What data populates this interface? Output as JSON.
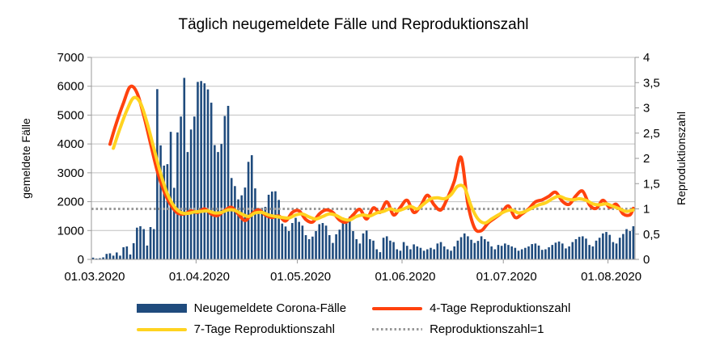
{
  "chart": {
    "title": "Täglich neugemeldete Fälle und Reproduktionszahl",
    "left_axis": {
      "title": "gemeldete Fälle",
      "min": 0,
      "max": 7000,
      "step": 1000,
      "tick_labels": [
        "7000",
        "6000",
        "5000",
        "4000",
        "3000",
        "2000",
        "1000",
        "0"
      ]
    },
    "right_axis": {
      "title": "Reproduktionszahl",
      "min": 0,
      "max": 4,
      "step": 0.5,
      "tick_labels": [
        "4",
        "3,5",
        "3",
        "2,5",
        "2",
        "1,5",
        "1",
        "0,5",
        "0"
      ]
    },
    "x_axis": {
      "tick_labels": [
        "01.03.2020",
        "01.04.2020",
        "01.05.2020",
        "01.06.2020",
        "01.07.2020",
        "01.08.2020"
      ],
      "tick_day_indices": [
        0,
        31,
        61,
        92,
        122,
        153
      ],
      "total_days": 161
    },
    "colors": {
      "bars": "#1f4b7d",
      "line_4day": "#ff420e",
      "line_7day": "#ffd320",
      "reference": "#999999",
      "gridline": "#c0c0c0",
      "axis": "#9a9a9a"
    }
  },
  "chart_data": {
    "type": "bar",
    "subtype": "combo-bar-line",
    "start_date": "01.03.2020",
    "end_date": "08.08.2020",
    "bars": {
      "name": "Neugemeldete Corona-Fälle",
      "color": "#1f4b7d",
      "axis": "left",
      "values": [
        60,
        30,
        40,
        70,
        190,
        210,
        130,
        240,
        130,
        420,
        450,
        170,
        560,
        1100,
        1150,
        1050,
        480,
        1120,
        1050,
        5900,
        3950,
        3250,
        3300,
        4420,
        2480,
        4400,
        4950,
        6290,
        3720,
        4500,
        4950,
        6150,
        6180,
        6100,
        5890,
        5430,
        3960,
        3720,
        4000,
        4970,
        5320,
        2820,
        2540,
        2080,
        2220,
        2490,
        3380,
        3610,
        2460,
        1780,
        1790,
        1820,
        2240,
        2350,
        2360,
        2060,
        1240,
        1140,
        980,
        1260,
        1440,
        1300,
        1170,
        840,
        700,
        790,
        980,
        1220,
        1260,
        1170,
        840,
        570,
        870,
        1030,
        1450,
        1350,
        1480,
        980,
        700,
        550,
        900,
        1000,
        700,
        650,
        350,
        250,
        750,
        800,
        650,
        600,
        350,
        300,
        600,
        470,
        350,
        520,
        450,
        400,
        300,
        350,
        400,
        350,
        550,
        600,
        450,
        350,
        300,
        450,
        650,
        770,
        900,
        800,
        680,
        570,
        640,
        800,
        700,
        620,
        450,
        350,
        500,
        470,
        550,
        500,
        450,
        400,
        300,
        350,
        400,
        450,
        530,
        550,
        480,
        330,
        350,
        420,
        500,
        580,
        620,
        550,
        380,
        450,
        600,
        700,
        780,
        800,
        720,
        500,
        450,
        650,
        750,
        900,
        950,
        850,
        600,
        550,
        750,
        880,
        1050,
        980,
        1150
      ]
    },
    "lines": [
      {
        "name": "4-Tage Reproduktionszahl",
        "color": "#ff420e",
        "axis": "right",
        "width": 4,
        "points": [
          [
            5,
            2.28
          ],
          [
            7,
            2.72
          ],
          [
            9,
            3.1
          ],
          [
            11,
            3.42
          ],
          [
            13,
            3.3
          ],
          [
            15,
            2.85
          ],
          [
            17,
            2.3
          ],
          [
            19,
            1.75
          ],
          [
            21,
            1.35
          ],
          [
            23,
            1.08
          ],
          [
            25,
            0.92
          ],
          [
            27,
            0.9
          ],
          [
            29,
            0.96
          ],
          [
            31,
            0.93
          ],
          [
            33,
            1.0
          ],
          [
            35,
            0.9
          ],
          [
            37,
            0.87
          ],
          [
            39,
            0.97
          ],
          [
            41,
            1.03
          ],
          [
            43,
            0.9
          ],
          [
            45,
            0.77
          ],
          [
            47,
            0.9
          ],
          [
            49,
            0.98
          ],
          [
            51,
            0.88
          ],
          [
            53,
            0.83
          ],
          [
            55,
            0.86
          ],
          [
            57,
            0.76
          ],
          [
            59,
            0.93
          ],
          [
            61,
            0.96
          ],
          [
            63,
            0.79
          ],
          [
            65,
            0.74
          ],
          [
            67,
            0.9
          ],
          [
            69,
            0.98
          ],
          [
            71,
            0.93
          ],
          [
            73,
            0.78
          ],
          [
            75,
            0.74
          ],
          [
            77,
            0.88
          ],
          [
            79,
            0.99
          ],
          [
            81,
            0.8
          ],
          [
            83,
            1.02
          ],
          [
            85,
            0.93
          ],
          [
            87,
            1.14
          ],
          [
            89,
            0.88
          ],
          [
            91,
            1.03
          ],
          [
            93,
            1.17
          ],
          [
            95,
            0.93
          ],
          [
            97,
            1.06
          ],
          [
            99,
            1.27
          ],
          [
            101,
            1.08
          ],
          [
            103,
            0.98
          ],
          [
            105,
            1.22
          ],
          [
            107,
            1.55
          ],
          [
            109,
            2.02
          ],
          [
            111,
            1.1
          ],
          [
            113,
            0.62
          ],
          [
            115,
            0.57
          ],
          [
            117,
            0.72
          ],
          [
            119,
            0.82
          ],
          [
            121,
            0.92
          ],
          [
            123,
            1.06
          ],
          [
            125,
            0.83
          ],
          [
            127,
            0.9
          ],
          [
            129,
            1.0
          ],
          [
            131,
            1.14
          ],
          [
            133,
            1.18
          ],
          [
            135,
            1.25
          ],
          [
            137,
            1.33
          ],
          [
            139,
            1.15
          ],
          [
            141,
            1.09
          ],
          [
            143,
            1.26
          ],
          [
            145,
            1.35
          ],
          [
            147,
            1.08
          ],
          [
            149,
            1.01
          ],
          [
            151,
            1.17
          ],
          [
            153,
            1.03
          ],
          [
            155,
            1.09
          ],
          [
            157,
            0.9
          ],
          [
            159,
            0.88
          ],
          [
            160,
            1.01
          ]
        ]
      },
      {
        "name": "7-Tage Reproduktionszahl",
        "color": "#ffd320",
        "axis": "right",
        "width": 4,
        "points": [
          [
            6,
            2.2
          ],
          [
            8,
            2.6
          ],
          [
            10,
            2.95
          ],
          [
            12,
            3.2
          ],
          [
            14,
            3.1
          ],
          [
            16,
            2.7
          ],
          [
            18,
            2.2
          ],
          [
            20,
            1.7
          ],
          [
            22,
            1.3
          ],
          [
            24,
            1.05
          ],
          [
            26,
            0.93
          ],
          [
            28,
            0.91
          ],
          [
            30,
            0.94
          ],
          [
            32,
            0.95
          ],
          [
            34,
            0.96
          ],
          [
            36,
            0.92
          ],
          [
            38,
            0.93
          ],
          [
            40,
            0.98
          ],
          [
            42,
            0.97
          ],
          [
            44,
            0.9
          ],
          [
            46,
            0.85
          ],
          [
            48,
            0.92
          ],
          [
            50,
            0.93
          ],
          [
            52,
            0.88
          ],
          [
            54,
            0.85
          ],
          [
            56,
            0.83
          ],
          [
            58,
            0.82
          ],
          [
            60,
            0.88
          ],
          [
            62,
            0.9
          ],
          [
            64,
            0.84
          ],
          [
            66,
            0.8
          ],
          [
            68,
            0.85
          ],
          [
            70,
            0.9
          ],
          [
            72,
            0.87
          ],
          [
            74,
            0.8
          ],
          [
            76,
            0.78
          ],
          [
            78,
            0.85
          ],
          [
            80,
            0.88
          ],
          [
            82,
            0.86
          ],
          [
            84,
            0.92
          ],
          [
            86,
            0.95
          ],
          [
            88,
            1.0
          ],
          [
            90,
            0.96
          ],
          [
            92,
            1.0
          ],
          [
            94,
            1.05
          ],
          [
            96,
            1.0
          ],
          [
            98,
            1.1
          ],
          [
            100,
            1.2
          ],
          [
            102,
            1.22
          ],
          [
            104,
            1.2
          ],
          [
            106,
            1.28
          ],
          [
            108,
            1.45
          ],
          [
            110,
            1.42
          ],
          [
            112,
            1.05
          ],
          [
            114,
            0.8
          ],
          [
            116,
            0.72
          ],
          [
            118,
            0.8
          ],
          [
            120,
            0.88
          ],
          [
            122,
            0.95
          ],
          [
            124,
            0.98
          ],
          [
            126,
            0.92
          ],
          [
            128,
            0.95
          ],
          [
            130,
            1.02
          ],
          [
            132,
            1.08
          ],
          [
            134,
            1.12
          ],
          [
            136,
            1.2
          ],
          [
            138,
            1.25
          ],
          [
            140,
            1.2
          ],
          [
            142,
            1.18
          ],
          [
            144,
            1.2
          ],
          [
            146,
            1.17
          ],
          [
            148,
            1.1
          ],
          [
            150,
            1.08
          ],
          [
            152,
            1.1
          ],
          [
            154,
            1.05
          ],
          [
            156,
            1.0
          ],
          [
            158,
            0.95
          ],
          [
            160,
            0.98
          ]
        ]
      }
    ],
    "reference_line": {
      "name": "Reproduktionszahl=1",
      "color": "#999999",
      "style": "dotted",
      "axis": "right",
      "value": 1
    }
  },
  "legend": {
    "items": [
      {
        "label": "Neugemeldete Corona-Fälle",
        "swatch": "bar",
        "color": "#1f4b7d"
      },
      {
        "label": "4-Tage Reproduktionszahl",
        "swatch": "line",
        "color": "#ff420e"
      },
      {
        "label": "7-Tage Reproduktionszahl",
        "swatch": "line",
        "color": "#ffd320"
      },
      {
        "label": "Reproduktionszahl=1",
        "swatch": "dotted",
        "color": "#999999"
      }
    ]
  }
}
